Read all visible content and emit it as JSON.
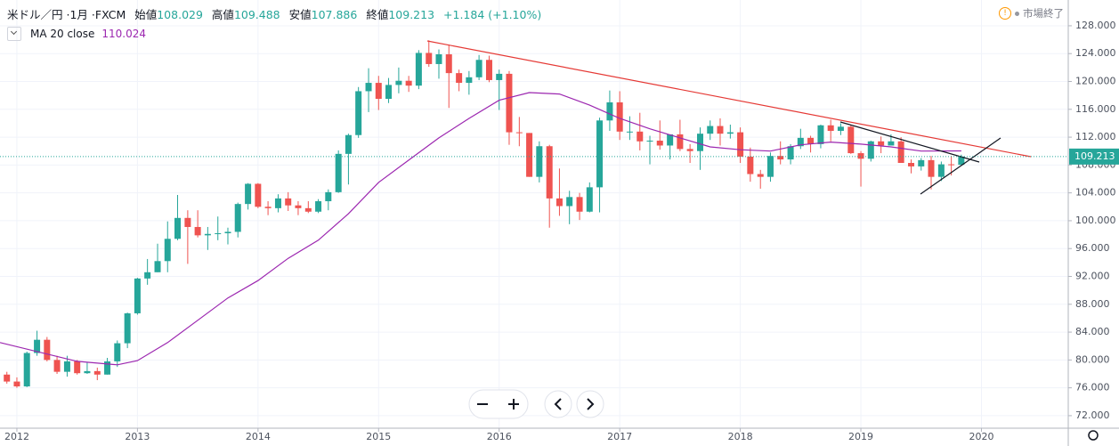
{
  "header": {
    "symbol": "米ドル／円",
    "interval": "1月",
    "source": "FXCM",
    "ohlc": [
      {
        "label": "始値",
        "value": 108.029
      },
      {
        "label": "高値",
        "value": 109.488
      },
      {
        "label": "安値",
        "value": 107.886
      },
      {
        "label": "終値",
        "value": 109.213
      }
    ],
    "change": "+1.184",
    "change_pct": "(+1.10%)",
    "market_status": "市場終了"
  },
  "chart_data": {
    "type": "candlestick",
    "x": [
      2011.917,
      2012.0,
      2012.083,
      2012.167,
      2012.25,
      2012.333,
      2012.417,
      2012.5,
      2012.583,
      2012.667,
      2012.75,
      2012.833,
      2012.917,
      2013.0,
      2013.083,
      2013.167,
      2013.25,
      2013.333,
      2013.417,
      2013.5,
      2013.583,
      2013.667,
      2013.75,
      2013.833,
      2013.917,
      2014.0,
      2014.083,
      2014.167,
      2014.25,
      2014.333,
      2014.417,
      2014.5,
      2014.583,
      2014.667,
      2014.75,
      2014.833,
      2014.917,
      2015.0,
      2015.083,
      2015.167,
      2015.25,
      2015.333,
      2015.417,
      2015.5,
      2015.583,
      2015.667,
      2015.75,
      2015.833,
      2015.917,
      2016.0,
      2016.083,
      2016.167,
      2016.25,
      2016.333,
      2016.417,
      2016.5,
      2016.583,
      2016.667,
      2016.75,
      2016.833,
      2016.917,
      2017.0,
      2017.083,
      2017.167,
      2017.25,
      2017.333,
      2017.417,
      2017.5,
      2017.583,
      2017.667,
      2017.75,
      2017.833,
      2017.917,
      2018.0,
      2018.083,
      2018.167,
      2018.25,
      2018.333,
      2018.417,
      2018.5,
      2018.583,
      2018.667,
      2018.75,
      2018.833,
      2018.917,
      2019.0,
      2019.083,
      2019.167,
      2019.25,
      2019.333,
      2019.417,
      2019.5,
      2019.583,
      2019.667,
      2019.75,
      2019.833
    ],
    "open": [
      77.9,
      76.9,
      76.2,
      81.0,
      82.9,
      80.0,
      78.3,
      79.8,
      78.1,
      78.4,
      77.9,
      79.8,
      82.4,
      86.7,
      91.7,
      92.6,
      94.2,
      97.4,
      100.4,
      99.1,
      97.9,
      98.1,
      98.2,
      98.4,
      102.4,
      105.3,
      102.0,
      101.8,
      103.2,
      102.2,
      101.8,
      101.3,
      102.8,
      104.1,
      109.6,
      112.3,
      118.6,
      119.8,
      117.5,
      119.5,
      120.1,
      119.4,
      124.1,
      122.5,
      123.9,
      121.2,
      119.8,
      120.6,
      123.1,
      120.2,
      121.1,
      112.7,
      112.6,
      106.3,
      110.7,
      103.2,
      102.1,
      103.4,
      101.3,
      104.8,
      114.4,
      117.0,
      112.8,
      112.8,
      111.4,
      111.5,
      110.8,
      112.4,
      110.3,
      110.0,
      112.5,
      113.6,
      112.5,
      112.7,
      109.2,
      106.7,
      106.3,
      109.3,
      108.8,
      110.7,
      111.9,
      111.0,
      113.7,
      112.9,
      113.5,
      109.7,
      108.9,
      111.4,
      110.8,
      111.4,
      108.3,
      107.8,
      108.7,
      106.3,
      108.1,
      108.029
    ],
    "high": [
      78.3,
      77.5,
      81.2,
      84.2,
      83.3,
      80.6,
      80.6,
      80.0,
      79.6,
      78.9,
      80.3,
      82.8,
      86.8,
      91.8,
      94.5,
      96.7,
      99.9,
      103.7,
      101.5,
      101.5,
      99.1,
      100.6,
      99.0,
      102.6,
      105.4,
      105.4,
      102.8,
      103.8,
      104.1,
      102.8,
      102.8,
      103.1,
      104.5,
      110.1,
      112.5,
      119.2,
      121.9,
      120.8,
      120.5,
      122.0,
      120.8,
      124.5,
      125.9,
      124.6,
      125.3,
      121.7,
      121.5,
      123.8,
      123.7,
      121.7,
      121.5,
      114.9,
      112.6,
      111.4,
      110.9,
      107.5,
      104.3,
      104.0,
      105.5,
      114.8,
      118.7,
      118.6,
      115.0,
      115.5,
      112.2,
      114.4,
      112.4,
      114.5,
      111.0,
      113.4,
      114.4,
      114.7,
      113.8,
      113.4,
      110.5,
      107.3,
      109.8,
      111.4,
      111.0,
      113.2,
      112.2,
      113.8,
      114.5,
      114.0,
      113.8,
      110.0,
      111.5,
      112.1,
      112.4,
      112.0,
      108.8,
      109.0,
      109.3,
      108.5,
      109.3,
      109.488
    ],
    "low": [
      76.6,
      76.0,
      76.1,
      80.6,
      79.8,
      78.0,
      77.6,
      77.9,
      78.0,
      77.1,
      77.9,
      79.0,
      81.7,
      86.5,
      90.8,
      92.6,
      92.6,
      97.2,
      93.8,
      97.6,
      95.8,
      97.2,
      96.6,
      97.6,
      101.6,
      101.8,
      100.8,
      101.2,
      101.4,
      100.8,
      101.1,
      101.1,
      101.5,
      104.0,
      105.2,
      111.9,
      115.6,
      115.9,
      116.9,
      118.3,
      118.5,
      118.9,
      122.1,
      120.4,
      116.2,
      118.6,
      118.1,
      120.2,
      119.9,
      115.9,
      110.9,
      110.7,
      106.3,
      105.5,
      99.0,
      100.7,
      99.5,
      100.1,
      101.2,
      101.2,
      112.9,
      111.6,
      111.6,
      110.1,
      108.1,
      110.2,
      108.8,
      110.0,
      108.3,
      107.3,
      111.6,
      110.8,
      111.8,
      108.3,
      105.6,
      104.6,
      105.6,
      108.1,
      108.1,
      110.3,
      109.8,
      110.4,
      111.4,
      112.3,
      109.6,
      104.9,
      108.5,
      109.7,
      110.8,
      108.3,
      106.8,
      107.2,
      104.5,
      105.7,
      106.5,
      107.886
    ],
    "close": [
      76.9,
      76.2,
      81.0,
      82.9,
      80.0,
      78.3,
      79.8,
      78.1,
      78.4,
      77.9,
      79.8,
      82.4,
      86.7,
      91.7,
      92.6,
      94.2,
      97.4,
      100.4,
      99.1,
      97.9,
      98.1,
      98.2,
      98.4,
      102.4,
      105.3,
      102.0,
      101.8,
      103.2,
      102.2,
      101.8,
      101.3,
      102.8,
      104.1,
      109.6,
      112.3,
      118.6,
      119.8,
      117.5,
      119.5,
      120.1,
      119.4,
      124.1,
      122.5,
      123.9,
      121.2,
      119.8,
      120.6,
      123.1,
      120.2,
      121.1,
      112.7,
      112.6,
      106.3,
      110.7,
      103.2,
      102.1,
      103.4,
      101.3,
      104.8,
      114.4,
      117.0,
      112.8,
      112.8,
      111.4,
      111.5,
      110.8,
      112.4,
      110.3,
      110.0,
      112.5,
      113.6,
      112.5,
      112.7,
      109.2,
      106.7,
      106.3,
      109.3,
      108.8,
      110.7,
      111.9,
      111.0,
      113.7,
      112.9,
      113.5,
      109.7,
      108.9,
      111.4,
      110.8,
      111.4,
      108.3,
      107.8,
      108.7,
      106.3,
      108.1,
      108.0,
      109.213
    ],
    "up_color": "#26a69a",
    "down_color": "#ef5350",
    "ma": {
      "name": "MA 20 close",
      "color": "#9c27b0",
      "last_value": 110.024,
      "x": [
        2011.86,
        2012.5,
        2012.833,
        2013.0,
        2013.25,
        2013.5,
        2013.75,
        2014.0,
        2014.25,
        2014.5,
        2014.75,
        2015.0,
        2015.25,
        2015.5,
        2015.75,
        2016.0,
        2016.25,
        2016.5,
        2016.75,
        2017.0,
        2017.25,
        2017.5,
        2017.75,
        2018.0,
        2018.25,
        2018.5,
        2018.75,
        2019.0,
        2019.25,
        2019.5,
        2019.833
      ],
      "values": [
        82.5,
        79.8,
        79.3,
        79.9,
        82.5,
        85.7,
        88.9,
        91.4,
        94.6,
        97.2,
        101.0,
        105.5,
        108.7,
        111.9,
        114.7,
        117.3,
        118.4,
        118.2,
        116.6,
        114.7,
        113.2,
        111.9,
        110.6,
        110.2,
        110.0,
        110.9,
        111.3,
        111.0,
        110.6,
        110.0,
        110.024
      ]
    },
    "last_price": 109.213,
    "xlim": [
      2011.86,
      2020.72
    ],
    "xticks": [
      2012,
      2013,
      2014,
      2015,
      2016,
      2017,
      2018,
      2019,
      2020
    ],
    "ylim": [
      70.2,
      131.7
    ],
    "yticks": [
      {
        "value": 72,
        "label": "72.000"
      },
      {
        "value": 76,
        "label": "76.000"
      },
      {
        "value": 80,
        "label": "80.000"
      },
      {
        "value": 84,
        "label": "84.000"
      },
      {
        "value": 88,
        "label": "88.000"
      },
      {
        "value": 92,
        "label": "92.000"
      },
      {
        "value": 96,
        "label": "96.000"
      },
      {
        "value": 100,
        "label": "100.000"
      },
      {
        "value": 104,
        "label": "104.000"
      },
      {
        "value": 108,
        "label": "108.000"
      },
      {
        "value": 112,
        "label": "112.000"
      },
      {
        "value": 116,
        "label": "116.000"
      },
      {
        "value": 120,
        "label": "120.000"
      },
      {
        "value": 124,
        "label": "124.000"
      },
      {
        "value": 128,
        "label": "128.000"
      }
    ],
    "grid": true
  }
}
